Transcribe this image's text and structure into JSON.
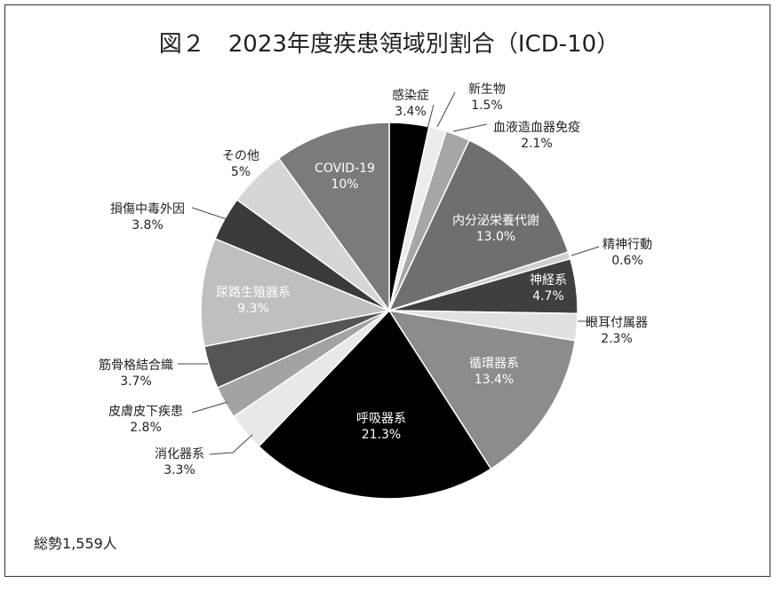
{
  "chart_data": {
    "type": "pie",
    "title": "図２　2023年度疾患領域別割合（ICD-10）",
    "unit": "%",
    "slices": [
      {
        "label": "感染症",
        "value": 3.4,
        "color": "#000000",
        "inside": false
      },
      {
        "label": "新生物",
        "value": 1.5,
        "color": "#ececec",
        "inside": false
      },
      {
        "label": "血液造血器免疫",
        "value": 2.1,
        "color": "#a6a6a6",
        "inside": false
      },
      {
        "label": "内分泌栄養代謝",
        "value": 13.0,
        "color": "#6f6f6f",
        "inside": true
      },
      {
        "label": "精神行動",
        "value": 0.6,
        "color": "#cfcfcf",
        "inside": false
      },
      {
        "label": "神経系",
        "value": 4.7,
        "color": "#3f3f3f",
        "inside": true
      },
      {
        "label": "眼耳付属器",
        "value": 2.3,
        "color": "#e0e0e0",
        "inside": false
      },
      {
        "label": "循環器系",
        "value": 13.4,
        "color": "#8c8c8c",
        "inside": true
      },
      {
        "label": "呼吸器系",
        "value": 21.3,
        "color": "#000000",
        "inside": true
      },
      {
        "label": "消化器系",
        "value": 3.3,
        "color": "#e8e8e8",
        "inside": false
      },
      {
        "label": "皮膚皮下疾患",
        "value": 2.8,
        "color": "#a3a3a3",
        "inside": false
      },
      {
        "label": "筋骨格結合織",
        "value": 3.7,
        "color": "#555555",
        "inside": false
      },
      {
        "label": "尿路生殖器系",
        "value": 9.3,
        "color": "#bfbfbf",
        "inside": true
      },
      {
        "label": "損傷中毒外因",
        "value": 3.8,
        "color": "#3a3a3a",
        "inside": false
      },
      {
        "label": "その他",
        "value": 5,
        "color": "#d6d6d6",
        "inside": false
      },
      {
        "label": "COVID-19",
        "value": 10,
        "color": "#7b7b7b",
        "inside": true
      }
    ],
    "value_labels": [
      "3.4%",
      "1.5%",
      "2.1%",
      "13.0%",
      "0.6%",
      "4.7%",
      "2.3%",
      "13.4%",
      "21.3%",
      "3.3%",
      "2.8%",
      "3.7%",
      "9.3%",
      "3.8%",
      "5%",
      "10%"
    ],
    "total_text": "総勢1,559人"
  }
}
